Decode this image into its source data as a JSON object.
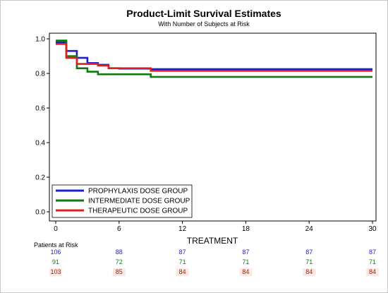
{
  "chart_data": {
    "type": "line",
    "title": "Product-Limit Survival Estimates",
    "subtitle": "With Number of Subjects at Risk",
    "xlabel": "TREATMENT",
    "ylabel": "",
    "xlim": [
      0,
      30
    ],
    "ylim": [
      0.0,
      1.0
    ],
    "x_ticks": [
      "0",
      "6",
      "12",
      "18",
      "24",
      "30"
    ],
    "y_ticks": [
      "0.0",
      "0.2",
      "0.4",
      "0.6",
      "0.8",
      "1.0"
    ],
    "grid": false,
    "legend_position": "bottom-left",
    "series": [
      {
        "name": "PROPHYLAXIS DOSE GROUP",
        "color": "#1f1fcc",
        "x": [
          0,
          1,
          2,
          3,
          4,
          5,
          6,
          9,
          30
        ],
        "y": [
          0.98,
          0.93,
          0.89,
          0.86,
          0.85,
          0.83,
          0.828,
          0.825,
          0.825
        ]
      },
      {
        "name": "INTERMEDIATE DOSE GROUP",
        "color": "#0f7a0f",
        "x": [
          0,
          1,
          2,
          3,
          4,
          9,
          30
        ],
        "y": [
          0.99,
          0.9,
          0.83,
          0.81,
          0.795,
          0.78,
          0.78
        ]
      },
      {
        "name": "THERAPEUTIC DOSE GROUP",
        "color": "#e01f1f",
        "x": [
          0,
          1,
          2,
          4,
          5,
          9,
          30
        ],
        "y": [
          0.97,
          0.89,
          0.855,
          0.845,
          0.83,
          0.815,
          0.815
        ]
      }
    ]
  },
  "risk_table": {
    "title": "Patients at Risk",
    "times": [
      0,
      6,
      12,
      18,
      24,
      30
    ],
    "rows": [
      {
        "color": "#1f1fcc",
        "values": [
          "106",
          "88",
          "87",
          "87",
          "87",
          "87"
        ]
      },
      {
        "color": "#0f7a0f",
        "values": [
          "91",
          "72",
          "71",
          "71",
          "71",
          "71"
        ]
      },
      {
        "color": "#8a2a00",
        "values": [
          "103",
          "85",
          "84",
          "84",
          "84",
          "84"
        ],
        "highlight": "#fde8e8"
      }
    ]
  }
}
